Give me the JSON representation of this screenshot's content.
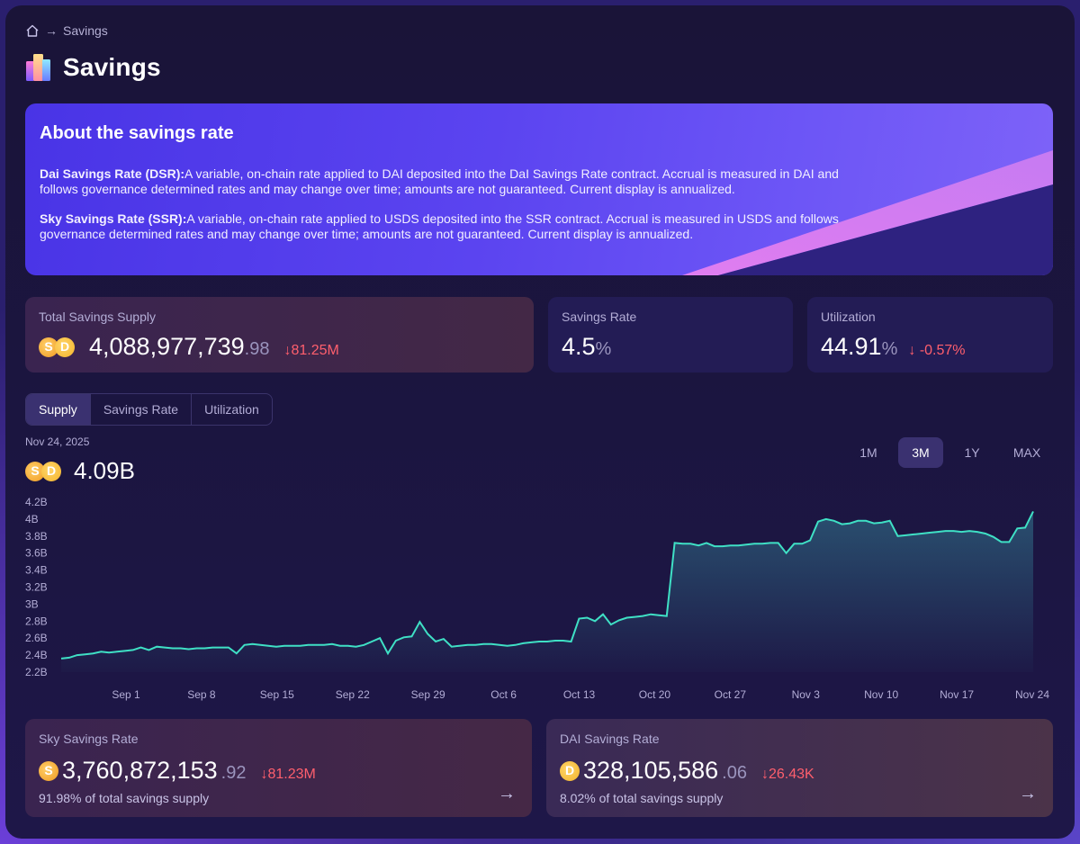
{
  "breadcrumb": {
    "items": [
      "Savings"
    ]
  },
  "page": {
    "title": "Savings"
  },
  "about": {
    "heading": "About the savings rate",
    "dsr_title": "Dai Savings Rate (DSR):",
    "dsr_text": "A variable, on-chain rate applied to DAI deposited into the DaI Savings Rate contract. Accrual is measured in DAI and follows governance determined rates and may change over time; amounts are not guaranteed. Current display is annualized.",
    "ssr_title": "Sky Savings Rate (SSR):",
    "ssr_text": "A variable, on-chain rate applied to USDS deposited into the SSR contract. Accrual is measured in USDS and follows governance determined rates and may change over time; amounts are not guaranteed. Current display is annualized."
  },
  "stats": {
    "supply": {
      "label": "Total Savings Supply",
      "value": "4,088,977,739",
      "decimals": ".98",
      "change": "81.25M"
    },
    "rate": {
      "label": "Savings Rate",
      "value": "4.5",
      "unit": "%"
    },
    "utilization": {
      "label": "Utilization",
      "value": "44.91",
      "unit": "%",
      "change": "-0.57%"
    }
  },
  "tabs": [
    "Supply",
    "Savings Rate",
    "Utilization"
  ],
  "ranges": [
    "1M",
    "3M",
    "1Y",
    "MAX"
  ],
  "chart_header": {
    "date": "Nov 24, 2025",
    "value": "4.09B"
  },
  "chart_data": {
    "type": "area",
    "title": "",
    "xlabel": "",
    "ylabel": "",
    "ylim": [
      2.2,
      4.2
    ],
    "y_unit": "B",
    "yticks": [
      "4.2B",
      "4B",
      "3.8B",
      "3.6B",
      "3.4B",
      "3.2B",
      "3B",
      "2.8B",
      "2.6B",
      "2.4B",
      "2.2B"
    ],
    "xticks": [
      "Sep 1",
      "Sep 8",
      "Sep 15",
      "Sep 22",
      "Sep 29",
      "Oct 6",
      "Oct 13",
      "Oct 20",
      "Oct 27",
      "Nov 3",
      "Nov 10",
      "Nov 17",
      "Nov 24"
    ],
    "series": [
      {
        "color": "#3fe0c5",
        "values": [
          2.36,
          2.37,
          2.4,
          2.41,
          2.42,
          2.44,
          2.43,
          2.44,
          2.45,
          2.46,
          2.49,
          2.46,
          2.5,
          2.49,
          2.48,
          2.48,
          2.47,
          2.48,
          2.48,
          2.49,
          2.49,
          2.49,
          2.42,
          2.52,
          2.53,
          2.52,
          2.51,
          2.5,
          2.51,
          2.51,
          2.51,
          2.52,
          2.52,
          2.52,
          2.53,
          2.51,
          2.51,
          2.5,
          2.52,
          2.56,
          2.6,
          2.42,
          2.57,
          2.61,
          2.62,
          2.79,
          2.65,
          2.56,
          2.59,
          2.5,
          2.51,
          2.52,
          2.52,
          2.53,
          2.53,
          2.52,
          2.51,
          2.52,
          2.54,
          2.55,
          2.56,
          2.56,
          2.57,
          2.57,
          2.56,
          2.83,
          2.84,
          2.8,
          2.88,
          2.76,
          2.81,
          2.84,
          2.85,
          2.86,
          2.88,
          2.87,
          2.86,
          3.72,
          3.71,
          3.71,
          3.69,
          3.72,
          3.68,
          3.68,
          3.69,
          3.69,
          3.7,
          3.71,
          3.71,
          3.72,
          3.72,
          3.6,
          3.71,
          3.71,
          3.75,
          3.97,
          4.0,
          3.98,
          3.94,
          3.95,
          3.98,
          3.98,
          3.95,
          3.96,
          3.98,
          3.8,
          3.81,
          3.82,
          3.83,
          3.84,
          3.85,
          3.86,
          3.86,
          3.85,
          3.86,
          3.85,
          3.83,
          3.79,
          3.73,
          3.73,
          3.89,
          3.9,
          4.09
        ]
      }
    ]
  },
  "bottom": {
    "sky": {
      "label": "Sky Savings Rate",
      "value": "3,760,872,153",
      "decimals": ".92",
      "change": "81.23M",
      "share": "91.98%",
      "share_label": "of total savings supply"
    },
    "dai": {
      "label": "DAI Savings Rate",
      "value": "328,105,586",
      "decimals": ".06",
      "change": "26.43K",
      "share": "8.02%",
      "share_label": "of total savings supply"
    }
  },
  "colors": {
    "accent": "#3fe0c5",
    "negative": "#ff5f6d",
    "hero": "#5b44f0"
  }
}
